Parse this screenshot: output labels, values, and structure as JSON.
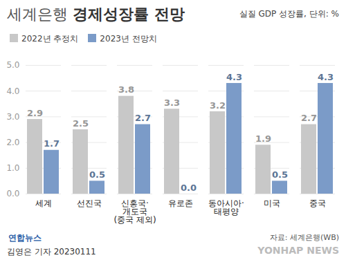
{
  "chart_data": {
    "type": "bar",
    "title": "세계은행 경제성장률 전망",
    "subtitle": "실질 GDP 성장률, 단위: %",
    "categories": [
      "세계",
      "선진국",
      "신흥국·\n개도국\n(중국 제외)",
      "유로존",
      "동아시아·\n태평양",
      "미국",
      "중국"
    ],
    "series": [
      {
        "name": "2022년 추정치",
        "color": "#c8c8c8",
        "values": [
          2.9,
          2.5,
          3.8,
          3.3,
          3.2,
          1.9,
          2.7
        ],
        "value_labels": [
          "2.9",
          "2.5",
          "3.8",
          "3.3",
          "3.2",
          "1.9",
          "2.7"
        ]
      },
      {
        "name": "2023년 전망치",
        "color": "#7b9bc8",
        "values": [
          1.7,
          0.5,
          2.7,
          0.0,
          4.3,
          0.5,
          4.3
        ],
        "value_labels": [
          "1.7",
          "0.5",
          "2.7",
          "0.0",
          "4.3",
          "0.5",
          "4.3"
        ]
      }
    ],
    "ylim": [
      0,
      5
    ],
    "yticks": [
      0,
      1,
      2,
      3,
      4,
      5
    ],
    "grid": true,
    "data_labels": true,
    "legend": "top-left",
    "source": "자료: 세계은행(WB)",
    "logo": "연합뉴스",
    "byline": "김영은 기자  20230111",
    "watermark": "YONHAP NEWS"
  }
}
